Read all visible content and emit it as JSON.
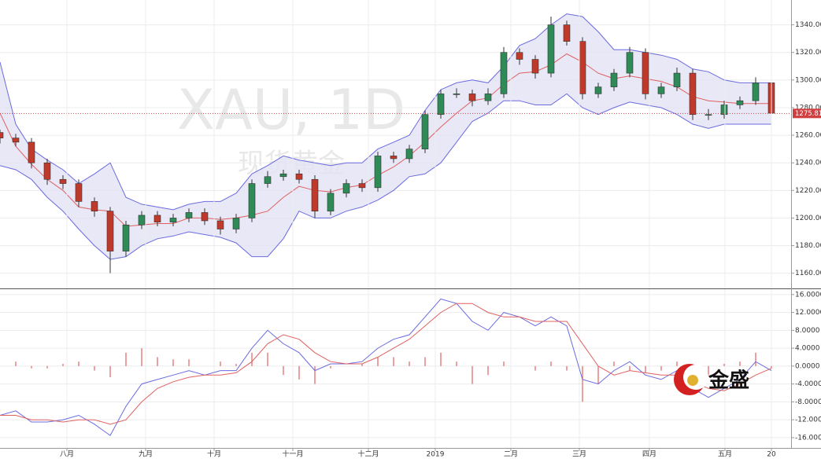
{
  "chart_data": [
    {
      "type": "candlestick",
      "x": [
        0,
        1,
        2,
        3,
        4,
        5,
        6,
        7,
        8,
        9,
        10,
        11,
        12,
        13,
        14,
        15,
        16,
        17,
        18,
        19,
        20,
        21,
        22,
        23,
        24,
        25,
        26,
        27,
        28,
        29,
        30,
        31,
        32,
        33,
        34,
        35,
        36,
        37,
        38,
        39,
        40,
        41,
        42,
        43,
        44,
        45,
        46,
        47,
        48,
        49
      ],
      "open": [
        1262,
        1258,
        1255,
        1240,
        1228,
        1225,
        1212,
        1205,
        1176,
        1195,
        1202,
        1197,
        1200,
        1204,
        1198,
        1192,
        1200,
        1225,
        1230,
        1232,
        1228,
        1205,
        1218,
        1225,
        1222,
        1245,
        1243,
        1250,
        1275,
        1290,
        1290,
        1285,
        1290,
        1320,
        1315,
        1305,
        1340,
        1328,
        1290,
        1295,
        1305,
        1320,
        1290,
        1295,
        1305,
        1275,
        1275,
        1282,
        1285,
        1298
      ],
      "high": [
        1264,
        1261,
        1258,
        1243,
        1231,
        1228,
        1215,
        1208,
        1198,
        1205,
        1205,
        1203,
        1207,
        1207,
        1201,
        1203,
        1228,
        1234,
        1235,
        1235,
        1231,
        1221,
        1228,
        1228,
        1248,
        1248,
        1253,
        1278,
        1293,
        1294,
        1293,
        1294,
        1324,
        1323,
        1318,
        1346,
        1343,
        1331,
        1298,
        1308,
        1324,
        1323,
        1298,
        1309,
        1308,
        1279,
        1285,
        1288,
        1302,
        1302
      ],
      "low": [
        1254,
        1252,
        1236,
        1224,
        1221,
        1208,
        1201,
        1160,
        1172,
        1192,
        1194,
        1194,
        1197,
        1195,
        1188,
        1189,
        1197,
        1222,
        1227,
        1225,
        1200,
        1202,
        1215,
        1219,
        1219,
        1240,
        1240,
        1247,
        1272,
        1287,
        1281,
        1282,
        1287,
        1311,
        1301,
        1302,
        1325,
        1286,
        1287,
        1292,
        1302,
        1286,
        1287,
        1292,
        1271,
        1271,
        1272,
        1279,
        1282,
        1272
      ],
      "close": [
        1258,
        1255,
        1240,
        1228,
        1225,
        1212,
        1205,
        1176,
        1195,
        1202,
        1197,
        1200,
        1204,
        1198,
        1192,
        1200,
        1225,
        1230,
        1232,
        1228,
        1205,
        1218,
        1225,
        1222,
        1245,
        1243,
        1250,
        1275,
        1290,
        1290,
        1285,
        1290,
        1320,
        1315,
        1305,
        1340,
        1328,
        1290,
        1295,
        1305,
        1320,
        1290,
        1295,
        1305,
        1275,
        1275,
        1282,
        1285,
        1298,
        1276
      ],
      "up_color": "#2e8b57",
      "down_color": "#c0392b",
      "bands": {
        "color": "#6a6ae0",
        "fill": "#e2e2f4",
        "middle_color": "#e06060",
        "upper": [
          1313,
          1268,
          1250,
          1242,
          1235,
          1225,
          1232,
          1240,
          1215,
          1210,
          1208,
          1206,
          1210,
          1212,
          1212,
          1218,
          1232,
          1238,
          1245,
          1242,
          1240,
          1238,
          1240,
          1240,
          1250,
          1255,
          1260,
          1278,
          1293,
          1298,
          1300,
          1298,
          1310,
          1325,
          1330,
          1340,
          1348,
          1346,
          1335,
          1322,
          1322,
          1320,
          1318,
          1315,
          1308,
          1306,
          1300,
          1298,
          1298,
          1298
        ],
        "middle": [
          1276,
          1252,
          1239,
          1228,
          1220,
          1208,
          1206,
          1205,
          1194,
          1195,
          1196,
          1196,
          1200,
          1200,
          1199,
          1200,
          1202,
          1205,
          1215,
          1223,
          1220,
          1219,
          1222,
          1224,
          1231,
          1237,
          1245,
          1255,
          1266,
          1276,
          1285,
          1287,
          1297,
          1305,
          1306,
          1311,
          1319,
          1313,
          1305,
          1301,
          1303,
          1301,
          1299,
          1295,
          1288,
          1285,
          1284,
          1283,
          1283,
          1283
        ],
        "lower": [
          1238,
          1235,
          1228,
          1215,
          1205,
          1192,
          1180,
          1170,
          1172,
          1180,
          1185,
          1187,
          1190,
          1188,
          1186,
          1182,
          1172,
          1172,
          1185,
          1205,
          1200,
          1200,
          1205,
          1208,
          1213,
          1220,
          1230,
          1232,
          1240,
          1255,
          1270,
          1276,
          1285,
          1285,
          1282,
          1282,
          1290,
          1280,
          1275,
          1280,
          1284,
          1282,
          1280,
          1275,
          1268,
          1265,
          1268,
          1268,
          1268,
          1268
        ]
      },
      "last_price": 1275.81,
      "xlim": [
        0,
        50.25
      ],
      "ylim": [
        1149,
        1358
      ],
      "yticks": [
        {
          "value": 1160,
          "label": "1160.00"
        },
        {
          "value": 1180,
          "label": "1180.00"
        },
        {
          "value": 1200,
          "label": "1200.00"
        },
        {
          "value": 1220,
          "label": "1220.00"
        },
        {
          "value": 1240,
          "label": "1240.00"
        },
        {
          "value": 1260,
          "label": "1260.00"
        },
        {
          "value": 1280,
          "label": "1280.00"
        },
        {
          "value": 1300,
          "label": "1300.00"
        },
        {
          "value": 1320,
          "label": "1320.00"
        },
        {
          "value": 1340,
          "label": "1340.00"
        }
      ],
      "grid": true
    },
    {
      "type": "macd",
      "x": [
        0,
        1,
        2,
        3,
        4,
        5,
        6,
        7,
        8,
        9,
        10,
        11,
        12,
        13,
        14,
        15,
        16,
        17,
        18,
        19,
        20,
        21,
        22,
        23,
        24,
        25,
        26,
        27,
        28,
        29,
        30,
        31,
        32,
        33,
        34,
        35,
        36,
        37,
        38,
        39,
        40,
        41,
        42,
        43,
        44,
        45,
        46,
        47,
        48,
        49
      ],
      "series": [
        {
          "color": "#6a6ae0",
          "values": [
            -11,
            -10,
            -12.5,
            -12.5,
            -12,
            -11,
            -13,
            -15.5,
            -9,
            -4,
            -3,
            -2,
            -1,
            -2,
            -1,
            -1,
            4,
            8,
            5,
            3,
            -1,
            0.5,
            0.5,
            1,
            4,
            6,
            7,
            11,
            15,
            14,
            10,
            8,
            12,
            11,
            9,
            11,
            9,
            -3,
            -4,
            -1,
            1,
            -2,
            -3,
            -1,
            -5,
            -7,
            -5,
            -3,
            1,
            -1
          ]
        },
        {
          "color": "#e06060",
          "values": [
            -11,
            -11,
            -12,
            -12,
            -12.5,
            -12,
            -12,
            -13,
            -12,
            -8,
            -5,
            -3.5,
            -2.5,
            -2,
            -2,
            -1.5,
            1,
            5,
            7,
            6,
            3,
            1,
            0.5,
            0.5,
            2,
            4,
            6,
            9,
            12,
            14,
            14,
            12,
            11,
            11,
            10,
            10,
            10,
            5,
            0,
            -2,
            -1,
            -1.5,
            -2,
            -2,
            -3.5,
            -5,
            -5.5,
            -4,
            -2,
            -0.5
          ]
        }
      ],
      "histogram": {
        "color": "#e06060",
        "values": [
          0,
          1,
          -0.5,
          -0.5,
          0.5,
          1,
          -1,
          -2.5,
          3,
          4,
          2,
          1.5,
          1.5,
          0,
          1,
          0.5,
          3,
          3,
          -2,
          -3,
          -4,
          -0.5,
          0,
          0.5,
          2,
          2,
          1,
          2,
          3,
          1,
          -4,
          -2,
          1,
          0,
          -1,
          1,
          -1,
          -8,
          -4,
          1,
          -1,
          -1.5,
          -1,
          1,
          -1.5,
          -2,
          0.5,
          1,
          3,
          -0.5
        ]
      },
      "xlim": [
        0,
        50.25
      ],
      "ylim": [
        -18.3,
        17.2
      ],
      "yticks": [
        {
          "value": -16,
          "label": "-16.0000"
        },
        {
          "value": -12,
          "label": "-12.0000"
        },
        {
          "value": -8,
          "label": "-8.0000"
        },
        {
          "value": -4,
          "label": "-4.0000"
        },
        {
          "value": 0,
          "label": "0.0000"
        },
        {
          "value": 4,
          "label": "4.0000"
        },
        {
          "value": 8,
          "label": "8.0000"
        },
        {
          "value": 12,
          "label": "12.0000"
        },
        {
          "value": 16,
          "label": "16.0000"
        }
      ],
      "xticks": [
        {
          "value": 4.25,
          "label": "八月"
        },
        {
          "value": 9.25,
          "label": "九月"
        },
        {
          "value": 13.6,
          "label": "十月"
        },
        {
          "value": 18.6,
          "label": "十一月"
        },
        {
          "value": 23.4,
          "label": "十二月"
        },
        {
          "value": 27.65,
          "label": "2019"
        },
        {
          "value": 32.45,
          "label": "二月"
        },
        {
          "value": 36.8,
          "label": "三月"
        },
        {
          "value": 41.25,
          "label": "四月"
        },
        {
          "value": 46.05,
          "label": "五月"
        },
        {
          "value": 49,
          "label": "20"
        }
      ],
      "grid": true
    }
  ],
  "watermark": {
    "symbol": "XAU, 1D",
    "name": "现货黄金"
  },
  "logo": "金盛"
}
